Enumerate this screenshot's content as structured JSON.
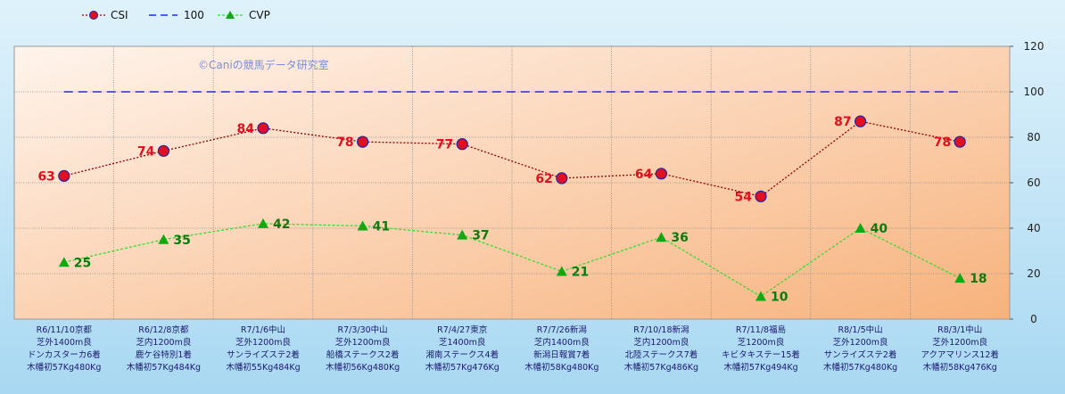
{
  "chart_data": {
    "type": "line",
    "watermark": "©Caniの競馬データ研究室",
    "categories": [
      [
        "R6/11/10京都",
        "芝外1400m良",
        "ドンカスターカ6着",
        "木幡初57Kg480Kg"
      ],
      [
        "R6/12/8京都",
        "芝内1200m良",
        "鹿ケ谷特別1着",
        "木幡初57Kg484Kg"
      ],
      [
        "R7/1/6中山",
        "芝外1200m良",
        "サンライズステ2着",
        "木幡初55Kg484Kg"
      ],
      [
        "R7/3/30中山",
        "芝外1200m良",
        "船橋ステークス2着",
        "木幡初56Kg480Kg"
      ],
      [
        "R7/4/27東京",
        "芝1400m良",
        "湘南ステークス4着",
        "木幡初57Kg476Kg"
      ],
      [
        "R7/7/26新潟",
        "芝内1400m良",
        "新潟日報賞7着",
        "木幡初58Kg480Kg"
      ],
      [
        "R7/10/18新潟",
        "芝内1200m良",
        "北陸ステークス7着",
        "木幡初57Kg486Kg"
      ],
      [
        "R7/11/8福島",
        "芝1200m良",
        "キビタキステー15着",
        "木幡初57Kg494Kg"
      ],
      [
        "R8/1/5中山",
        "芝外1200m良",
        "サンライズステ2着",
        "木幡初57Kg480Kg"
      ],
      [
        "R8/3/1中山",
        "芝外1200m良",
        "アクアマリンス12着",
        "木幡初58Kg476Kg"
      ]
    ],
    "series": [
      {
        "name": "CSI",
        "values": [
          63,
          74,
          84,
          78,
          77,
          62,
          64,
          54,
          87,
          78
        ],
        "color": "#8b0000",
        "marker_color": "#e01020",
        "label_color": "#e01020",
        "marker": "circle",
        "line": "dotted"
      },
      {
        "name": "100",
        "values": [
          100,
          100,
          100,
          100,
          100,
          100,
          100,
          100,
          100,
          100
        ],
        "color": "#1f2fd6",
        "line": "dashed"
      },
      {
        "name": "CVP",
        "values": [
          25,
          35,
          42,
          41,
          37,
          21,
          36,
          10,
          40,
          18
        ],
        "color": "#33dd33",
        "marker_color": "#12a812",
        "label_color": "#0f7a0f",
        "marker": "triangle",
        "line": "dashed"
      }
    ],
    "y_ticks": [
      "0",
      "20",
      "40",
      "60",
      "80",
      "100",
      "120"
    ],
    "ylim": [
      0,
      120
    ],
    "grid": true,
    "y_axis_side": "right",
    "legend_position": "top-left"
  }
}
